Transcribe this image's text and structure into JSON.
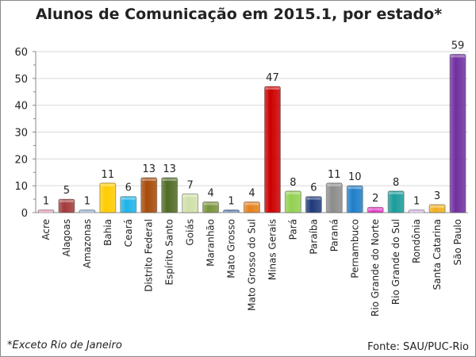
{
  "chart_data": {
    "type": "bar",
    "title": "Alunos de Comunicação  em 2015.1, por estado*",
    "categories": [
      "Acre",
      "Alagoas",
      "Amazonas",
      "Bahia",
      "Ceará",
      "Distrito Federal",
      "Espírito Santo",
      "Goiás",
      "Maranhão",
      "Mato Grosso",
      "Mato Grosso do Sul",
      "Minas Gerais",
      "Pará",
      "Paraíba",
      "Paraná",
      "Pernambuco",
      "Rio Grande do Norte",
      "Rio Grande do Sul",
      "Rondônia",
      "Santa Catarina",
      "São Paulo"
    ],
    "values": [
      1,
      5,
      1,
      11,
      6,
      13,
      13,
      7,
      4,
      1,
      4,
      47,
      8,
      6,
      11,
      10,
      2,
      8,
      1,
      3,
      59
    ],
    "colors": [
      "#e59ab8",
      "#a33a3a",
      "#8fb0d6",
      "#ffcc00",
      "#1eb4e8",
      "#a64b0a",
      "#4f6b25",
      "#cfe0a8",
      "#77933c",
      "#4a6fa5",
      "#e4811d",
      "#cc0000",
      "#92d050",
      "#1f3a7a",
      "#8c8c8c",
      "#1f7ec8",
      "#e033c0",
      "#1a9c9a",
      "#d9b3e6",
      "#f0b020",
      "#7030a0"
    ],
    "ylim": [
      0,
      60
    ],
    "yticks": [
      0,
      10,
      20,
      30,
      40,
      50,
      60
    ],
    "grid": true,
    "xlabel": "",
    "ylabel": ""
  },
  "footnote": "*Exceto Rio de Janeiro",
  "source": "Fonte: SAU/PUC-Rio"
}
